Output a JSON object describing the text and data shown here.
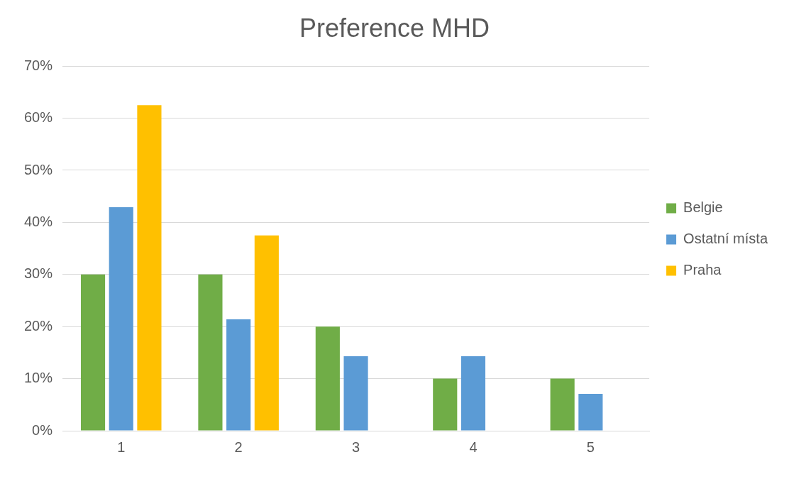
{
  "chart_data": {
    "type": "bar",
    "title": "Preference MHD",
    "categories": [
      "1",
      "2",
      "3",
      "4",
      "5"
    ],
    "series": [
      {
        "name": "Belgie",
        "color": "#70ad47",
        "values": [
          30,
          30,
          20,
          10,
          10
        ]
      },
      {
        "name": "Ostatní místa",
        "color": "#5b9bd5",
        "values": [
          42.9,
          21.4,
          14.3,
          14.3,
          7.1
        ]
      },
      {
        "name": "Praha",
        "color": "#ffc000",
        "values": [
          62.5,
          37.5,
          0,
          0,
          0
        ]
      }
    ],
    "ylim": [
      0,
      70
    ],
    "yticks": [
      {
        "value": 0,
        "label": "0%"
      },
      {
        "value": 10,
        "label": "10%"
      },
      {
        "value": 20,
        "label": "20%"
      },
      {
        "value": 30,
        "label": "30%"
      },
      {
        "value": 40,
        "label": "40%"
      },
      {
        "value": 50,
        "label": "50%"
      },
      {
        "value": 60,
        "label": "60%"
      },
      {
        "value": 70,
        "label": "70%"
      }
    ],
    "grid": "y",
    "legend": "right"
  }
}
